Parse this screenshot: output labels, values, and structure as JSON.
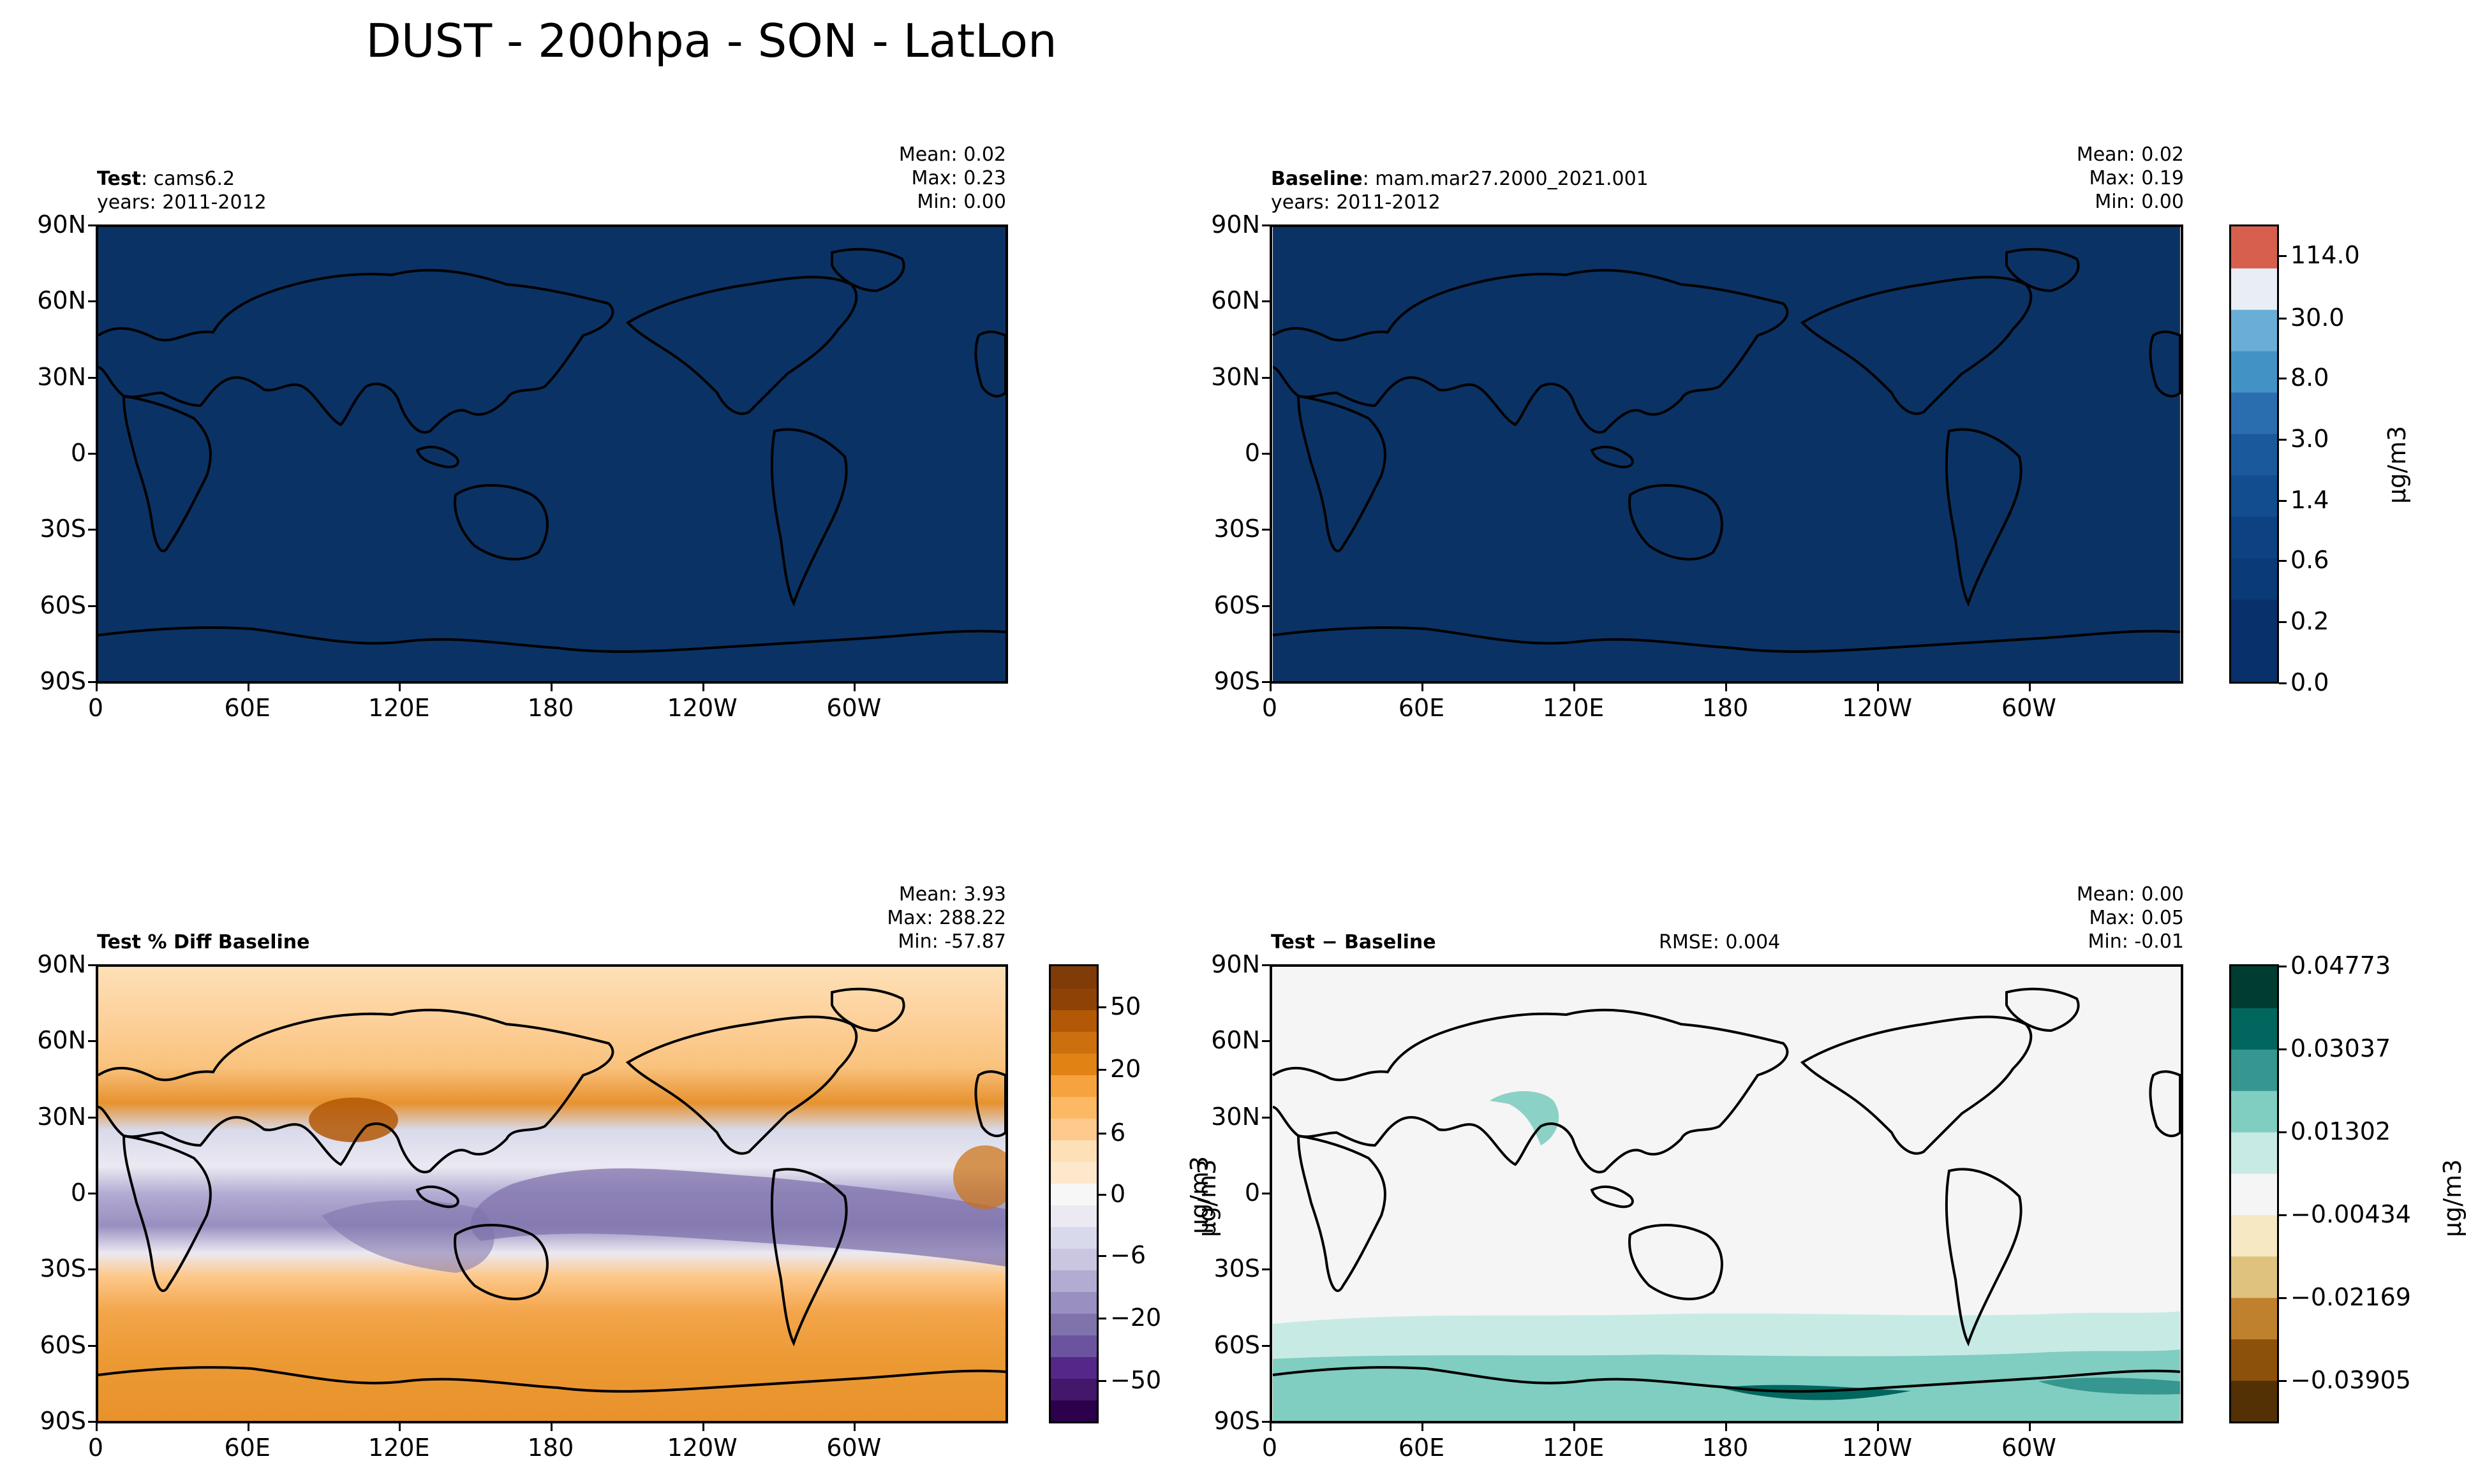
{
  "figure": {
    "title": "DUST - 200hpa - SON - LatLon"
  },
  "axes": {
    "lat_ticks": [
      "90N",
      "60N",
      "30N",
      "0",
      "30S",
      "60S",
      "90S"
    ],
    "lon_ticks": [
      "0",
      "60E",
      "120E",
      "180",
      "120W",
      "60W"
    ]
  },
  "panels": {
    "test": {
      "title_bold": "Test",
      "title_rest": ": cams6.2",
      "years": "years: 2011-2012",
      "mean": "Mean:  0.02",
      "max": "Max:  0.23",
      "min": "Min:  0.00",
      "fill_color": "#0b3264"
    },
    "baseline": {
      "title_bold": "Baseline",
      "title_rest": ": mam.mar27.2000_2021.001",
      "years": "years: 2011-2012",
      "mean": "Mean:  0.02",
      "max": "Max:  0.19",
      "min": "Min:  0.00",
      "fill_color": "#0b3264"
    },
    "pctdiff": {
      "title_bold": "Test % Diff Baseline",
      "mean": "Mean:  3.93",
      "max": "Max:  288.22",
      "min": "Min:  -57.87"
    },
    "diff": {
      "title_bold": "Test − Baseline",
      "rmse": "RMSE: 0.004",
      "mean": "Mean:  0.00",
      "max": "Max:  0.05",
      "min": "Min:  -0.01"
    }
  },
  "colorbars": {
    "top": {
      "label": "μg/m3",
      "ticks": [
        "114.0",
        "30.0",
        "8.0",
        "3.0",
        "1.4",
        "0.6",
        "0.2",
        "0.0"
      ],
      "colors": [
        "#08306b",
        "#08306b",
        "#0b3a78",
        "#0d4282",
        "#124d8f",
        "#1a5a9c",
        "#2b6eb0",
        "#4292c6",
        "#6aaed6",
        "#e9eef6",
        "#d6604d"
      ]
    },
    "pct": {
      "label": "μg/m3",
      "ticks": [
        "50",
        "20",
        "6",
        "0",
        "−6",
        "−20",
        "−50"
      ],
      "colors": [
        "#2d004b",
        "#431769",
        "#542788",
        "#6c53a0",
        "#8073ac",
        "#998fc0",
        "#b2abd2",
        "#cac6e2",
        "#d8daeb",
        "#ebe9f2",
        "#f7f7f7",
        "#fde8cc",
        "#fee0b6",
        "#fdc98c",
        "#fdb863",
        "#f6a23f",
        "#e08214",
        "#cc6f0e",
        "#b35806",
        "#8f4206",
        "#7f3b08"
      ]
    },
    "diff": {
      "label": "μg/m3",
      "ticks": [
        "0.04773",
        "0.03037",
        "0.01302",
        "−0.00434",
        "−0.02169",
        "−0.03905"
      ],
      "colors": [
        "#543005",
        "#8c510a",
        "#bf812d",
        "#dfc27d",
        "#f6e8c3",
        "#f5f5f5",
        "#c7eae5",
        "#80cdc1",
        "#35978f",
        "#01665e",
        "#003c30"
      ]
    }
  }
}
